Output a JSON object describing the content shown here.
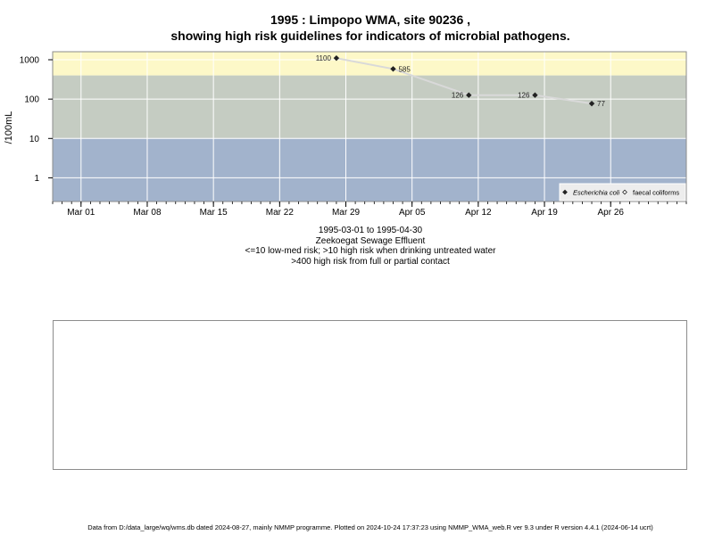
{
  "title_line1": "1995 : Limpopo WMA, site 90236 ,",
  "title_line2": "showing high risk guidelines for indicators of microbial pathogens.",
  "subtitle": {
    "date_range": "1995-03-01 to 1995-04-30",
    "site_name": "Zeekoegat Sewage Effluent",
    "risk_line1": "<=10 low-med risk; >10 high risk when drinking untreated water",
    "risk_line2": ">400 high risk from full or partial contact"
  },
  "footer": "Data from D:/data_large/wq/wms.db dated 2024-08-27, mainly NMMP programme. Plotted on 2024-10-24 17:37:23 using NMMP_WMA_web.R ver 9.3 under R version 4.4.1 (2024-06-14 ucrt)",
  "chart_data": {
    "type": "line",
    "ylabel": "/100mL",
    "y_scale": "log",
    "ylim": [
      0.25,
      1600
    ],
    "y_ticks": [
      1,
      10,
      100,
      1000
    ],
    "y_tick_labels": [
      "1",
      "10",
      "100",
      "1000"
    ],
    "x_range": [
      "1995-02-26",
      "1995-05-04"
    ],
    "x_ticks": [
      "1995-03-01",
      "1995-03-08",
      "1995-03-15",
      "1995-03-22",
      "1995-03-29",
      "1995-04-05",
      "1995-04-12",
      "1995-04-19",
      "1995-04-26"
    ],
    "x_tick_labels": [
      "Mar 01",
      "Mar 08",
      "Mar 15",
      "Mar 22",
      "Mar 29",
      "Apr 05",
      "Apr 12",
      "Apr 19",
      "Apr 26"
    ],
    "risk_bands": [
      {
        "from": 0.25,
        "to": 10,
        "color": "#a2b3cc"
      },
      {
        "from": 10,
        "to": 400,
        "color": "#c5ccc2"
      },
      {
        "from": 400,
        "to": 1600,
        "color": "#fdf8c8"
      }
    ],
    "grid": true,
    "series": [
      {
        "name": "Escherichia coli",
        "marker": "filled-diamond",
        "color": "#222222",
        "x": [
          "1995-03-28",
          "1995-04-03",
          "1995-04-11",
          "1995-04-18",
          "1995-04-24"
        ],
        "values": [
          1100,
          585,
          126,
          126,
          77
        ],
        "labels": [
          "1100",
          "585",
          "126",
          "126",
          "77"
        ]
      }
    ],
    "legend": {
      "placement": "bottom-right",
      "entries": [
        {
          "label": "Escherichia coli",
          "marker": "filled-diamond",
          "italic": true
        },
        {
          "label": "faecal coliforms",
          "marker": "open-diamond",
          "italic": false
        }
      ]
    }
  }
}
